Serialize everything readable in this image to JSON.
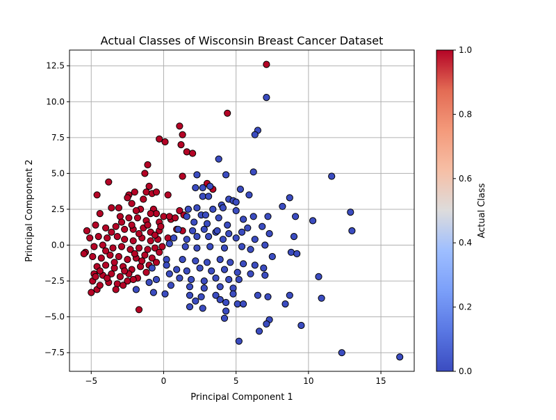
{
  "chart_data": {
    "type": "scatter",
    "title": "Actual Classes of Wisconsin Breast Cancer Dataset",
    "xlabel": "Principal Component 1",
    "ylabel": "Principal Component 2",
    "xlim": [
      -6.5,
      17.3
    ],
    "ylim": [
      -8.8,
      13.6
    ],
    "xticks": [
      -5,
      0,
      5,
      10,
      15
    ],
    "xtick_labels": [
      "−5",
      "0",
      "5",
      "10",
      "15"
    ],
    "yticks": [
      -7.5,
      -5.0,
      -2.5,
      0.0,
      2.5,
      5.0,
      7.5,
      10.0,
      12.5
    ],
    "ytick_labels": [
      "−7.5",
      "−5.0",
      "−2.5",
      "0.0",
      "2.5",
      "5.0",
      "7.5",
      "10.0",
      "12.5"
    ],
    "grid": true,
    "colorbar": {
      "label": "Actual Class",
      "colormap": "coolwarm",
      "range": [
        0.0,
        1.0
      ],
      "ticks": [
        0.0,
        0.2,
        0.4,
        0.6,
        0.8,
        1.0
      ],
      "tick_labels": [
        "0.0",
        "0.2",
        "0.4",
        "0.6",
        "0.8",
        "1.0"
      ]
    },
    "colors": {
      "class_0": "#3b4cc0",
      "class_1": "#b40426",
      "edge": "#000000"
    },
    "series": [
      {
        "class": 1,
        "points": [
          [
            7.1,
            12.6
          ],
          [
            4.4,
            9.2
          ],
          [
            1.1,
            8.3
          ],
          [
            1.3,
            7.7
          ],
          [
            -0.3,
            7.4
          ],
          [
            0.1,
            7.2
          ],
          [
            1.2,
            7.0
          ],
          [
            1.6,
            6.5
          ],
          [
            2.0,
            6.4
          ],
          [
            1.3,
            4.8
          ],
          [
            -1.3,
            5.0
          ],
          [
            -1.1,
            5.6
          ],
          [
            -3.8,
            4.4
          ],
          [
            -2.4,
            3.5
          ],
          [
            -2.5,
            3.3
          ],
          [
            -2.0,
            3.7
          ],
          [
            -1.2,
            3.7
          ],
          [
            -1.4,
            3.2
          ],
          [
            -1.0,
            4.1
          ],
          [
            -0.8,
            3.6
          ],
          [
            -0.5,
            3.7
          ],
          [
            0.3,
            3.5
          ],
          [
            3.0,
            4.3
          ],
          [
            3.4,
            3.9
          ],
          [
            -4.6,
            3.5
          ],
          [
            -3.1,
            2.6
          ],
          [
            -2.2,
            2.9
          ],
          [
            -1.6,
            2.5
          ],
          [
            -0.7,
            2.5
          ],
          [
            -0.5,
            2.2
          ],
          [
            0.0,
            2.0
          ],
          [
            1.1,
            2.4
          ],
          [
            1.4,
            2.1
          ],
          [
            -4.4,
            2.2
          ],
          [
            -3.0,
            2.0
          ],
          [
            -2.4,
            1.9
          ],
          [
            -1.8,
            1.9
          ],
          [
            -1.2,
            1.7
          ],
          [
            -0.3,
            1.6
          ],
          [
            0.5,
            1.8
          ],
          [
            -5.3,
            1.0
          ],
          [
            -4.7,
            1.4
          ],
          [
            -4.0,
            1.2
          ],
          [
            -3.3,
            1.3
          ],
          [
            -2.7,
            1.1
          ],
          [
            -2.1,
            1.1
          ],
          [
            -1.4,
            1.2
          ],
          [
            -0.9,
            0.9
          ],
          [
            -0.3,
            1.0
          ],
          [
            0.9,
            1.1
          ],
          [
            1.3,
            1.0
          ],
          [
            -5.1,
            0.5
          ],
          [
            -4.5,
            0.6
          ],
          [
            -3.9,
            0.5
          ],
          [
            -3.2,
            0.6
          ],
          [
            -2.7,
            0.4
          ],
          [
            -2.1,
            0.3
          ],
          [
            -1.5,
            0.5
          ],
          [
            -0.9,
            0.3
          ],
          [
            -0.4,
            0.4
          ],
          [
            0.3,
            0.5
          ],
          [
            -5.4,
            -0.5
          ],
          [
            -4.8,
            -0.1
          ],
          [
            -4.2,
            0.0
          ],
          [
            -3.5,
            -0.2
          ],
          [
            -2.9,
            -0.1
          ],
          [
            -2.3,
            -0.3
          ],
          [
            -1.7,
            -0.2
          ],
          [
            -1.1,
            -0.3
          ],
          [
            -0.6,
            -0.2
          ],
          [
            -0.1,
            -0.1
          ],
          [
            -4.9,
            -0.8
          ],
          [
            -4.3,
            -0.9
          ],
          [
            -3.7,
            -0.7
          ],
          [
            -3.1,
            -0.8
          ],
          [
            -2.5,
            -1.0
          ],
          [
            -1.9,
            -0.9
          ],
          [
            -1.3,
            -0.7
          ],
          [
            -0.8,
            -0.9
          ],
          [
            -4.6,
            -1.5
          ],
          [
            -4.0,
            -1.4
          ],
          [
            -3.4,
            -1.6
          ],
          [
            -2.8,
            -1.5
          ],
          [
            -2.2,
            -1.7
          ],
          [
            -1.6,
            -1.5
          ],
          [
            -1.0,
            -1.4
          ],
          [
            -4.8,
            -2.0
          ],
          [
            -4.2,
            -2.1
          ],
          [
            -3.6,
            -2.0
          ],
          [
            -3.0,
            -2.2
          ],
          [
            -2.4,
            -2.0
          ],
          [
            -1.8,
            -2.3
          ],
          [
            -4.9,
            -2.5
          ],
          [
            -3.8,
            -2.6
          ],
          [
            -3.2,
            -2.7
          ],
          [
            -2.5,
            -2.5
          ],
          [
            -4.6,
            -3.1
          ],
          [
            -5.0,
            -3.3
          ],
          [
            -3.3,
            -3.1
          ],
          [
            -2.8,
            -2.8
          ],
          [
            -1.7,
            -4.5
          ],
          [
            -3.6,
            2.6
          ],
          [
            -1.9,
            2.4
          ],
          [
            -0.9,
            2.2
          ],
          [
            -2.9,
            1.6
          ],
          [
            -2.2,
            1.4
          ],
          [
            -1.1,
            1.4
          ],
          [
            -0.2,
            1.3
          ],
          [
            -3.6,
            0.9
          ],
          [
            -1.7,
            0.8
          ],
          [
            -0.6,
            0.7
          ],
          [
            -4.0,
            -0.4
          ],
          [
            -2.0,
            -0.6
          ],
          [
            -0.3,
            -0.5
          ],
          [
            -3.4,
            -1.2
          ],
          [
            -1.5,
            -1.1
          ],
          [
            -0.5,
            -1.2
          ],
          [
            -4.4,
            -1.8
          ],
          [
            -2.7,
            -1.8
          ],
          [
            -1.2,
            -1.9
          ],
          [
            -3.9,
            -2.3
          ],
          [
            -2.1,
            -2.4
          ],
          [
            -4.4,
            -2.8
          ],
          [
            -5.5,
            -0.6
          ],
          [
            -4.7,
            -2.2
          ],
          [
            0.4,
            2.0
          ],
          [
            0.8,
            1.9
          ]
        ]
      },
      {
        "class": 0,
        "points": [
          [
            7.1,
            10.3
          ],
          [
            6.5,
            8.0
          ],
          [
            6.3,
            7.7
          ],
          [
            3.8,
            6.0
          ],
          [
            6.2,
            5.1
          ],
          [
            2.3,
            4.9
          ],
          [
            4.3,
            4.9
          ],
          [
            11.6,
            4.8
          ],
          [
            2.2,
            4.0
          ],
          [
            2.7,
            4.0
          ],
          [
            3.2,
            4.1
          ],
          [
            5.3,
            3.9
          ],
          [
            5.9,
            3.5
          ],
          [
            2.7,
            3.4
          ],
          [
            3.1,
            3.4
          ],
          [
            4.5,
            3.2
          ],
          [
            4.8,
            3.1
          ],
          [
            8.7,
            3.3
          ],
          [
            4.0,
            2.8
          ],
          [
            5.0,
            3.0
          ],
          [
            8.2,
            2.7
          ],
          [
            1.7,
            2.5
          ],
          [
            2.3,
            2.6
          ],
          [
            3.4,
            2.5
          ],
          [
            4.1,
            2.6
          ],
          [
            5.0,
            2.4
          ],
          [
            12.9,
            2.3
          ],
          [
            1.6,
            2.0
          ],
          [
            2.6,
            2.1
          ],
          [
            3.8,
            1.9
          ],
          [
            6.2,
            2.0
          ],
          [
            7.2,
            2.0
          ],
          [
            9.1,
            2.0
          ],
          [
            10.3,
            1.7
          ],
          [
            2.1,
            1.6
          ],
          [
            3.0,
            1.5
          ],
          [
            4.4,
            1.4
          ],
          [
            5.8,
            1.2
          ],
          [
            6.8,
            1.3
          ],
          [
            13.0,
            1.0
          ],
          [
            1.0,
            1.1
          ],
          [
            2.0,
            1.0
          ],
          [
            2.8,
            1.1
          ],
          [
            3.6,
            0.9
          ],
          [
            4.5,
            0.8
          ],
          [
            5.4,
            0.9
          ],
          [
            7.3,
            0.8
          ],
          [
            0.7,
            0.5
          ],
          [
            1.6,
            0.4
          ],
          [
            2.3,
            0.6
          ],
          [
            3.1,
            0.6
          ],
          [
            4.1,
            0.4
          ],
          [
            5.0,
            0.5
          ],
          [
            6.3,
            0.4
          ],
          [
            7.0,
            0.0
          ],
          [
            9.0,
            0.6
          ],
          [
            0.4,
            0.1
          ],
          [
            1.5,
            -0.1
          ],
          [
            2.3,
            -0.2
          ],
          [
            3.2,
            -0.1
          ],
          [
            4.2,
            -0.2
          ],
          [
            5.4,
            -0.1
          ],
          [
            6.0,
            -0.3
          ],
          [
            0.2,
            -1.0
          ],
          [
            1.3,
            -1.0
          ],
          [
            2.2,
            -1.1
          ],
          [
            3.0,
            -1.2
          ],
          [
            3.9,
            -1.0
          ],
          [
            4.6,
            -1.2
          ],
          [
            5.5,
            -1.3
          ],
          [
            6.3,
            -1.4
          ],
          [
            7.5,
            -0.8
          ],
          [
            8.8,
            -0.5
          ],
          [
            9.2,
            -0.6
          ],
          [
            0.9,
            -1.7
          ],
          [
            1.6,
            -1.8
          ],
          [
            2.5,
            -1.6
          ],
          [
            3.3,
            -1.8
          ],
          [
            4.2,
            -1.7
          ],
          [
            5.1,
            -1.9
          ],
          [
            6.0,
            -2.0
          ],
          [
            7.0,
            -2.1
          ],
          [
            1.1,
            -2.3
          ],
          [
            1.9,
            -2.4
          ],
          [
            2.8,
            -2.5
          ],
          [
            3.6,
            -2.3
          ],
          [
            4.5,
            -2.4
          ],
          [
            5.2,
            -2.4
          ],
          [
            10.7,
            -2.2
          ],
          [
            0.5,
            -2.8
          ],
          [
            1.8,
            -2.9
          ],
          [
            2.8,
            -3.0
          ],
          [
            3.9,
            -2.9
          ],
          [
            4.8,
            -3.0
          ],
          [
            0.1,
            -3.4
          ],
          [
            1.8,
            -3.5
          ],
          [
            2.6,
            -3.6
          ],
          [
            3.6,
            -3.5
          ],
          [
            4.8,
            -3.4
          ],
          [
            6.5,
            -3.5
          ],
          [
            7.2,
            -3.6
          ],
          [
            8.7,
            -3.5
          ],
          [
            10.9,
            -3.7
          ],
          [
            1.8,
            -4.3
          ],
          [
            2.7,
            -4.4
          ],
          [
            4.3,
            -4.0
          ],
          [
            5.1,
            -4.1
          ],
          [
            5.5,
            -4.1
          ],
          [
            8.4,
            -4.1
          ],
          [
            4.3,
            -4.6
          ],
          [
            4.2,
            -5.1
          ],
          [
            7.3,
            -5.2
          ],
          [
            7.1,
            -5.5
          ],
          [
            9.5,
            -5.6
          ],
          [
            6.6,
            -6.0
          ],
          [
            5.2,
            -6.7
          ],
          [
            12.3,
            -7.5
          ],
          [
            16.3,
            -7.8
          ],
          [
            -0.8,
            -1.6
          ],
          [
            -0.5,
            -2.4
          ],
          [
            -0.7,
            -3.3
          ],
          [
            0.2,
            -1.4
          ],
          [
            -1.0,
            -2.6
          ],
          [
            -1.9,
            -3.1
          ],
          [
            0.4,
            -2.0
          ],
          [
            3.7,
            1.0
          ],
          [
            2.9,
            2.1
          ],
          [
            5.5,
            1.8
          ],
          [
            6.9,
            -1.6
          ],
          [
            3.9,
            -3.8
          ],
          [
            2.2,
            -3.9
          ]
        ]
      }
    ]
  }
}
